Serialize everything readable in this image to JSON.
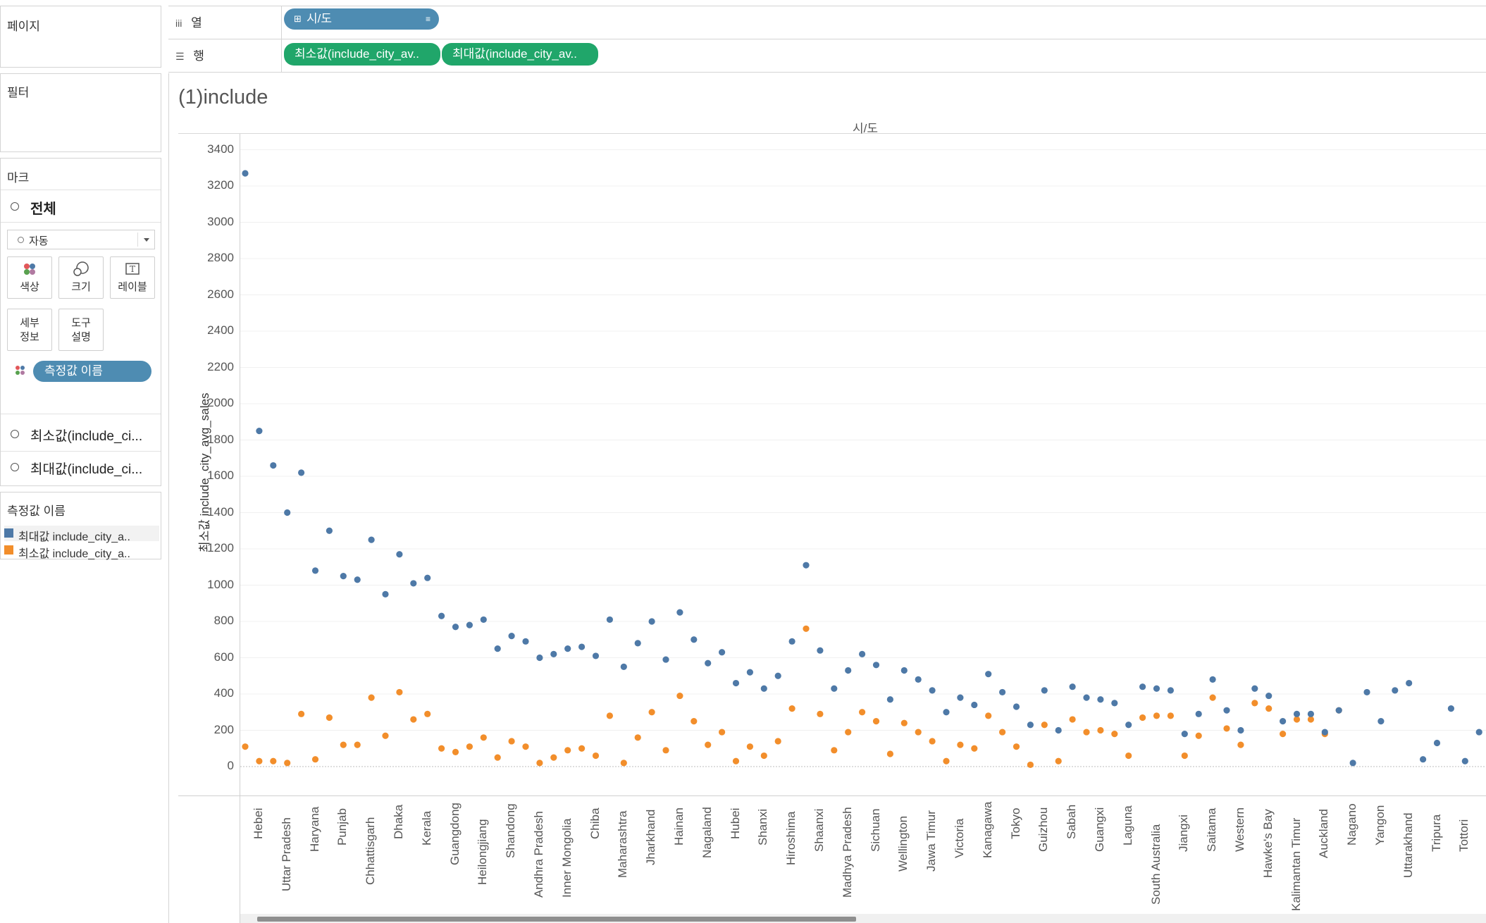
{
  "sidebar": {
    "pages_title": "페이지",
    "filters_title": "필터",
    "marks_title": "마크",
    "marks_all": "전체",
    "mark_type": "자동",
    "buttons": {
      "color": "색상",
      "size": "크기",
      "label": "레이블",
      "detail_1": "세부",
      "detail_2": "정보",
      "tooltip_1": "도구",
      "tooltip_2": "설명"
    },
    "measure_names_pill": "측정값 이름",
    "measure_items": [
      "최소값(include_ci...",
      "최대값(include_ci..."
    ],
    "legend_title": "측정값 이름",
    "legend_items": [
      {
        "label": "최대값 include_city_a..",
        "color": "#4e79a7"
      },
      {
        "label": "최소값 include_city_a..",
        "color": "#f28e2b"
      }
    ]
  },
  "shelves": {
    "columns_label": "열",
    "columns_pill": "시/도",
    "rows_label": "행",
    "rows_pills": [
      "최소값(include_city_av..",
      "최대값(include_city_av.."
    ]
  },
  "view": {
    "sheet_title": "(1)include",
    "column_header": "시/도",
    "y_axis_label": "최소값 include_city_avg_sales"
  },
  "colors": {
    "max_series": "#4e79a7",
    "min_series": "#f28e2b",
    "pill_blue": "#4e8cb2",
    "pill_green": "#20a66a"
  },
  "chart_data": {
    "type": "scatter",
    "ylim": [
      -100,
      3450
    ],
    "yticks": [
      0,
      200,
      400,
      600,
      800,
      1000,
      1200,
      1400,
      1600,
      1800,
      2000,
      2200,
      2400,
      2600,
      2800,
      3000,
      3200,
      3400
    ],
    "labeled_categories": [
      "Hebei",
      "Uttar Pradesh",
      "Haryana",
      "Punjab",
      "Chhattisgarh",
      "Dhaka",
      "Kerala",
      "Guangdong",
      "Heilongjiang",
      "Shandong",
      "Andhra Pradesh",
      "Inner Mongolia",
      "Chiba",
      "Maharashtra",
      "Jharkhand",
      "Hainan",
      "Nagaland",
      "Hubei",
      "Shanxi",
      "Hiroshima",
      "Shaanxi",
      "Madhya Pradesh",
      "Sichuan",
      "Wellington",
      "Jawa Timur",
      "Victoria",
      "Kanagawa",
      "Tokyo",
      "Guizhou",
      "Sabah",
      "Guangxi",
      "Laguna",
      "South Australia",
      "Jiangxi",
      "Saitama",
      "Western",
      "Hawke's Bay",
      "Kalimantan Timur",
      "Auckland",
      "Nagano",
      "Yangon",
      "Uttarakhand",
      "Tripura",
      "Tottori"
    ],
    "series": [
      {
        "name": "최대값 include_city_a..",
        "values": [
          3270,
          1850,
          1660,
          1400,
          1620,
          1080,
          1300,
          1050,
          1030,
          1250,
          950,
          1170,
          1010,
          1040,
          830,
          770,
          780,
          810,
          650,
          720,
          690,
          600,
          620,
          650,
          660,
          610,
          810,
          550,
          680,
          800,
          590,
          850,
          700,
          570,
          630,
          460,
          520,
          430,
          500,
          690,
          1110,
          640,
          430,
          530,
          620,
          560,
          370,
          530,
          480,
          420,
          300,
          380,
          340,
          510,
          410,
          330,
          230,
          420,
          200,
          440,
          380,
          370,
          350,
          230,
          440,
          430,
          420,
          180,
          290,
          480,
          310,
          200,
          430,
          390,
          250,
          290,
          290,
          190,
          310,
          20,
          410,
          250,
          420,
          460,
          40,
          130,
          320,
          30,
          190
        ]
      },
      {
        "name": "최소값 include_city_a..",
        "values": [
          110,
          30,
          30,
          20,
          290,
          40,
          270,
          120,
          120,
          380,
          170,
          410,
          260,
          290,
          100,
          80,
          110,
          160,
          50,
          140,
          110,
          20,
          50,
          90,
          100,
          60,
          280,
          20,
          160,
          300,
          90,
          390,
          250,
          120,
          190,
          30,
          110,
          60,
          140,
          320,
          760,
          290,
          90,
          190,
          300,
          250,
          70,
          240,
          190,
          140,
          30,
          120,
          100,
          280,
          190,
          110,
          10,
          230,
          30,
          260,
          190,
          200,
          180,
          60,
          270,
          280,
          280,
          60,
          170,
          380,
          210,
          120,
          350,
          320,
          180,
          260,
          260,
          180,
          310,
          null,
          null,
          null,
          null,
          null,
          null,
          null,
          null,
          null,
          null
        ]
      }
    ]
  }
}
